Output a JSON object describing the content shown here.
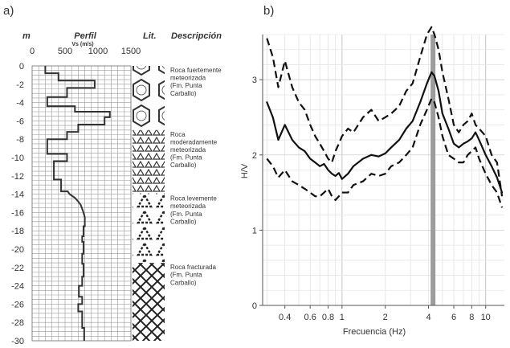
{
  "panel_a": {
    "label": "a)",
    "depth_unit": "m",
    "profile_title": "Perfil",
    "vs_label": "Vs (m/s)",
    "lith_title": "Lit.",
    "desc_title": "Descripción",
    "descriptions": [
      {
        "lines": [
          "Roca fuertemente",
          "meteorizada",
          "(Fm. Punta",
          "Carballo)"
        ]
      },
      {
        "lines": [
          "Roca",
          "moderadamente",
          "meteorizada",
          "(Fm. Punta",
          "Carballo)"
        ]
      },
      {
        "lines": [
          "Roca levemente",
          "meteorizada",
          "(Fm. Punta",
          "Carballo)"
        ]
      },
      {
        "lines": [
          "Roca fracturada",
          "(Fm. Punta",
          "Carballo)"
        ]
      }
    ]
  },
  "panel_b": {
    "label": "b)"
  },
  "chart_data": [
    {
      "type": "line",
      "panel": "a",
      "title": "Perfil",
      "xlabel": "Vs (m/s)",
      "ylabel": "m",
      "xlim": [
        0,
        1500
      ],
      "ylim": [
        -30,
        0
      ],
      "xticks": [
        0,
        500,
        1000,
        1500
      ],
      "yticks": [
        0,
        -2,
        -4,
        -6,
        -8,
        -10,
        -12,
        -14,
        -16,
        -18,
        -20,
        -22,
        -24,
        -26,
        -28,
        -30
      ],
      "grid": true,
      "series": [
        {
          "points": [
            [
              200,
              0
            ],
            [
              200,
              -0.8
            ],
            [
              400,
              -0.8
            ],
            [
              400,
              -1.6
            ],
            [
              950,
              -1.6
            ],
            [
              950,
              -2.4
            ],
            [
              530,
              -2.4
            ],
            [
              530,
              -3.4
            ],
            [
              230,
              -3.4
            ],
            [
              230,
              -4.4
            ],
            [
              650,
              -4.4
            ],
            [
              650,
              -5.0
            ],
            [
              1180,
              -5.0
            ],
            [
              1180,
              -5.6
            ],
            [
              1100,
              -5.6
            ],
            [
              1100,
              -6.4
            ],
            [
              700,
              -6.4
            ],
            [
              700,
              -7.2
            ],
            [
              530,
              -7.2
            ],
            [
              530,
              -8.0
            ],
            [
              230,
              -8.0
            ],
            [
              230,
              -9.6
            ],
            [
              530,
              -9.6
            ],
            [
              530,
              -10.4
            ],
            [
              330,
              -10.4
            ],
            [
              330,
              -12.4
            ],
            [
              440,
              -12.4
            ],
            [
              440,
              -13.7
            ],
            [
              540,
              -13.7
            ],
            [
              570,
              -14.0
            ],
            [
              650,
              -14.4
            ],
            [
              700,
              -14.8
            ],
            [
              740,
              -15.2
            ],
            [
              770,
              -15.8
            ],
            [
              800,
              -16.5
            ],
            [
              800,
              -17.5
            ],
            [
              780,
              -17.5
            ],
            [
              780,
              -18.6
            ],
            [
              760,
              -18.6
            ],
            [
              760,
              -19.2
            ],
            [
              780,
              -19.2
            ],
            [
              780,
              -20.5
            ],
            [
              760,
              -20.5
            ],
            [
              760,
              -21.6
            ],
            [
              780,
              -21.6
            ],
            [
              780,
              -23.0
            ],
            [
              760,
              -23.0
            ],
            [
              760,
              -24.0
            ],
            [
              710,
              -24.0
            ],
            [
              710,
              -25.2
            ],
            [
              760,
              -25.2
            ],
            [
              760,
              -26.0
            ],
            [
              700,
              -26.0
            ],
            [
              700,
              -26.8
            ],
            [
              760,
              -26.8
            ],
            [
              760,
              -27.4
            ],
            [
              760,
              -28.6
            ],
            [
              790,
              -28.6
            ],
            [
              790,
              -30
            ]
          ]
        }
      ],
      "lithology_units": [
        {
          "top": 0,
          "bottom": -7.0,
          "pattern": "strongly-weathered"
        },
        {
          "top": -7.0,
          "bottom": -14.0,
          "pattern": "moderately-weathered"
        },
        {
          "top": -14.0,
          "bottom": -21.5,
          "pattern": "slightly-weathered"
        },
        {
          "top": -21.5,
          "bottom": -30,
          "pattern": "fractured"
        }
      ]
    },
    {
      "type": "line",
      "panel": "b",
      "xlabel": "Frecuencia (Hz)",
      "ylabel": "H/V",
      "xscale": "log",
      "xlim": [
        0.28,
        13.5
      ],
      "ylim": [
        0,
        3.6
      ],
      "xticks": [
        "0.4",
        "0.6",
        "0.8",
        "1",
        "2",
        "4",
        "6",
        "8",
        "10"
      ],
      "xtick_values": [
        0.4,
        0.6,
        0.8,
        1,
        2,
        4,
        6,
        8,
        10
      ],
      "yticks": [
        0,
        1,
        2,
        3
      ],
      "grid": true,
      "highlight_frequency": 4.3,
      "series": [
        {
          "style": "solid",
          "x": [
            0.3,
            0.33,
            0.36,
            0.4,
            0.45,
            0.5,
            0.55,
            0.6,
            0.65,
            0.7,
            0.75,
            0.8,
            0.85,
            0.9,
            0.95,
            1.0,
            1.1,
            1.2,
            1.4,
            1.6,
            1.8,
            2.0,
            2.2,
            2.5,
            2.8,
            3.1,
            3.5,
            3.9,
            4.2,
            4.4,
            4.7,
            5.0,
            5.5,
            6.0,
            6.5,
            7.0,
            7.5,
            8.0,
            8.5,
            9.0,
            10.0,
            11.0,
            12.0,
            13.0
          ],
          "y": [
            2.7,
            2.5,
            2.2,
            2.4,
            2.2,
            2.1,
            2.05,
            1.95,
            1.9,
            1.85,
            1.88,
            1.8,
            1.75,
            1.72,
            1.76,
            1.68,
            1.75,
            1.85,
            1.95,
            2.0,
            1.98,
            2.02,
            2.1,
            2.2,
            2.35,
            2.45,
            2.7,
            2.95,
            3.1,
            3.05,
            2.85,
            2.55,
            2.35,
            2.15,
            2.1,
            2.15,
            2.18,
            2.22,
            2.3,
            2.2,
            2.0,
            1.85,
            1.7,
            1.5
          ]
        },
        {
          "style": "dashed",
          "x": [
            0.3,
            0.33,
            0.36,
            0.4,
            0.45,
            0.5,
            0.55,
            0.6,
            0.65,
            0.7,
            0.75,
            0.8,
            0.85,
            0.9,
            0.95,
            1.0,
            1.1,
            1.2,
            1.4,
            1.6,
            1.8,
            2.0,
            2.2,
            2.5,
            2.8,
            3.1,
            3.5,
            3.9,
            4.2,
            4.4,
            4.7,
            5.0,
            5.5,
            6.0,
            6.5,
            7.0,
            7.5,
            8.0,
            8.5,
            9.0,
            10.0,
            11.0,
            12.0,
            13.0
          ],
          "y": [
            3.55,
            3.3,
            2.9,
            3.25,
            2.9,
            2.7,
            2.6,
            2.4,
            2.25,
            2.15,
            2.05,
            1.95,
            1.9,
            2.05,
            2.15,
            2.25,
            2.35,
            2.3,
            2.5,
            2.6,
            2.45,
            2.5,
            2.55,
            2.65,
            2.85,
            2.95,
            3.3,
            3.6,
            3.7,
            3.6,
            3.4,
            3.1,
            2.75,
            2.4,
            2.3,
            2.4,
            2.45,
            2.55,
            2.4,
            2.35,
            2.25,
            2.0,
            1.9,
            1.45
          ]
        },
        {
          "style": "dashed",
          "x": [
            0.3,
            0.33,
            0.36,
            0.4,
            0.45,
            0.5,
            0.55,
            0.6,
            0.65,
            0.7,
            0.75,
            0.8,
            0.85,
            0.9,
            0.95,
            1.0,
            1.1,
            1.2,
            1.4,
            1.6,
            1.8,
            2.0,
            2.2,
            2.5,
            2.8,
            3.1,
            3.5,
            3.9,
            4.2,
            4.4,
            4.7,
            5.0,
            5.5,
            6.0,
            6.5,
            7.0,
            7.5,
            8.0,
            8.5,
            9.0,
            10.0,
            11.0,
            12.0,
            13.0
          ],
          "y": [
            1.95,
            1.85,
            1.7,
            1.8,
            1.65,
            1.6,
            1.55,
            1.5,
            1.45,
            1.45,
            1.5,
            1.55,
            1.45,
            1.4,
            1.45,
            1.5,
            1.5,
            1.6,
            1.65,
            1.75,
            1.72,
            1.75,
            1.85,
            1.9,
            2.0,
            2.1,
            2.4,
            2.6,
            2.75,
            2.7,
            2.5,
            2.25,
            2.0,
            1.95,
            1.9,
            1.9,
            2.0,
            2.05,
            2.1,
            1.95,
            1.75,
            1.6,
            1.5,
            1.3
          ]
        }
      ]
    }
  ]
}
